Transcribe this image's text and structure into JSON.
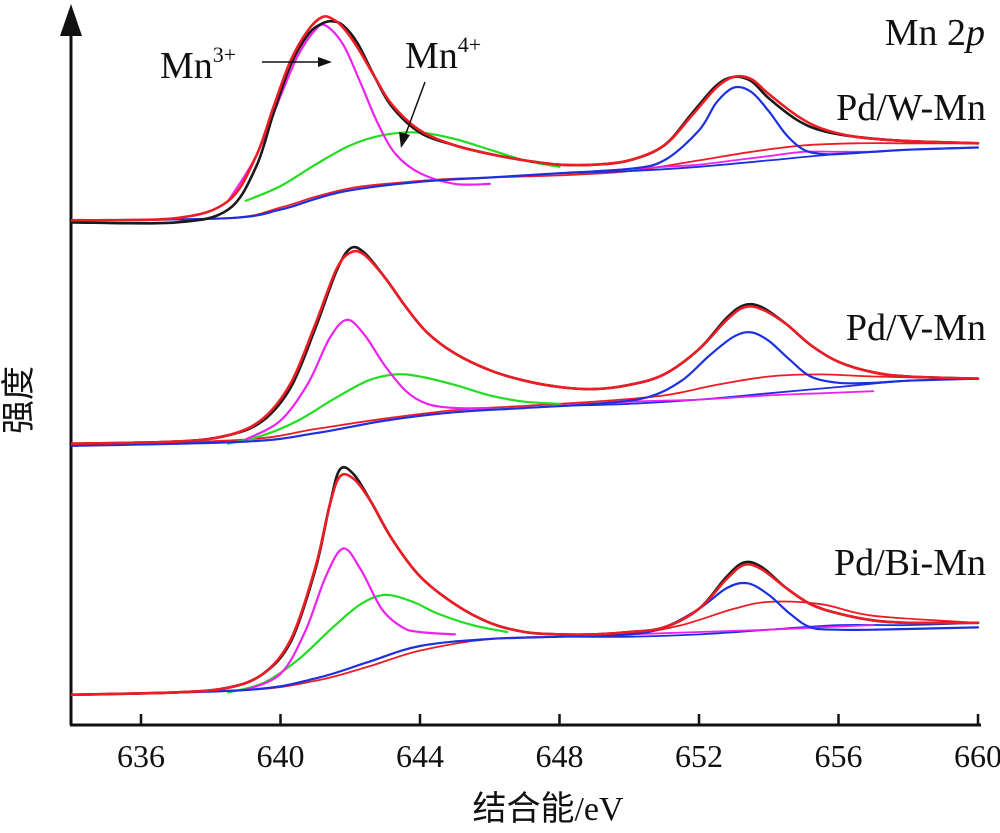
{
  "chart_data": {
    "type": "line",
    "title": "Mn 2p",
    "xlabel": "结合能/eV",
    "ylabel": "强度",
    "xlim": [
      633.8,
      660.2
    ],
    "xticks": [
      636,
      640,
      644,
      648,
      652,
      656,
      660
    ],
    "xtick_labels": [
      "636",
      "640",
      "644",
      "648",
      "652",
      "656",
      "660"
    ],
    "yticks": [],
    "grid": false,
    "annotations": {
      "mn3": {
        "base": "Mn",
        "sup": "3+"
      },
      "mn4": {
        "base": "Mn",
        "sup": "4+"
      }
    },
    "colors": {
      "raw": "#1a1a1a",
      "envelope": "#ee1c25",
      "background": "#ee1c25",
      "mn3": "#ee22ee",
      "mn4": "#22dd22",
      "p12": "#1c30e0",
      "p12_sat": "#ee22ee",
      "p12_bg": "#1c30e0",
      "axis": "#111111"
    },
    "panels": [
      {
        "name": "Pd/W-Mn",
        "yrange": [
          0,
          100
        ],
        "series": [
          {
            "role": "raw",
            "x": [
              634.0,
              637.0,
              638.5,
              639.3,
              639.8,
              640.3,
              640.8,
              641.2,
              641.5,
              641.8,
              642.2,
              642.7,
              643.2,
              644.0,
              645.0,
              646.0,
              647.0,
              648.0,
              649.0,
              650.0,
              651.0,
              651.8,
              652.5,
              653.0,
              653.5,
              654.0,
              654.8,
              655.5,
              656.5,
              658.0,
              660.0
            ],
            "y": [
              4,
              4,
              10,
              30,
              55,
              78,
              92,
              97,
              98,
              96,
              88,
              72,
              58,
              46,
              40,
              36,
              33,
              31,
              31,
              33,
              40,
              55,
              68,
              72,
              70,
              62,
              52,
              47,
              44,
              42,
              41
            ]
          },
          {
            "role": "envelope",
            "x": [
              634.0,
              637.0,
              638.5,
              639.3,
              639.8,
              640.3,
              640.8,
              641.2,
              641.5,
              641.8,
              642.2,
              642.7,
              643.2,
              644.0,
              645.0,
              646.0,
              647.0,
              648.0,
              649.0,
              650.0,
              651.0,
              651.8,
              652.5,
              653.0,
              653.5,
              654.0,
              654.8,
              655.5,
              656.5,
              658.0,
              660.0
            ],
            "y": [
              5,
              6,
              14,
              35,
              58,
              80,
              94,
              100,
              99,
              95,
              86,
              72,
              59,
              47,
              40,
              36,
              33,
              31,
              31,
              33,
              40,
              54,
              67,
              72,
              71,
              64,
              54,
              48,
              44,
              42,
              41
            ]
          },
          {
            "role": "mn3",
            "x": [
              638.5,
              639.3,
              640.0,
              640.5,
              641.0,
              641.3,
              641.8,
              642.3,
              642.8,
              643.3,
              644.0,
              645.0,
              646.0
            ],
            "y": [
              14,
              35,
              63,
              82,
              94,
              96,
              87,
              69,
              50,
              36,
              27,
              22,
              22
            ]
          },
          {
            "role": "mn4",
            "x": [
              639.0,
              640.0,
              641.0,
              642.0,
              643.0,
              644.0,
              645.0,
              646.0,
              647.0,
              648.0
            ],
            "y": [
              14,
              21,
              31,
              40,
              45,
              46,
              43,
              38,
              33,
              30
            ]
          },
          {
            "role": "background",
            "x": [
              634.0,
              638.5,
              640.0,
              641.0,
              642.0,
              643.0,
              644.5,
              646.0,
              648.0,
              650.0,
              652.0,
              653.5,
              655.0,
              656.5,
              658.0,
              660.0
            ],
            "y": [
              5,
              6,
              11,
              16,
              20,
              22,
              24,
              25,
              26,
              28,
              33,
              37,
              40,
              41,
              41,
              41
            ]
          },
          {
            "role": "p12",
            "x": [
              634.0,
              638.5,
              640.0,
              641.0,
              642.0,
              644.0,
              646.0,
              648.0,
              650.0,
              651.0,
              652.0,
              652.5,
              653.0,
              653.5,
              654.0,
              654.5,
              655.0,
              655.5,
              656.0,
              657.0,
              658.0,
              660.0
            ],
            "y": [
              5,
              6,
              10,
              15,
              19,
              23,
              25,
              27,
              29,
              33,
              47,
              60,
              67,
              65,
              56,
              45,
              38,
              36,
              36,
              37,
              38,
              39
            ]
          },
          {
            "role": "p12_sat",
            "x": [
              649.0,
              650.0,
              651.0,
              652.0,
              653.0,
              654.0,
              655.0,
              656.0,
              657.0
            ],
            "y": [
              28,
              29,
              30,
              31,
              33,
              35,
              37,
              37,
              37
            ]
          },
          {
            "role": "p12_bg",
            "x": [
              648.0,
              650.0,
              652.0,
              654.0,
              656.0,
              658.0,
              660.0
            ],
            "y": [
              27,
              28,
              30,
              33,
              36,
              38,
              39
            ]
          }
        ]
      },
      {
        "name": "Pd/V-Mn",
        "yrange": [
          0,
          100
        ],
        "series": [
          {
            "role": "raw",
            "x": [
              634.0,
              637.0,
              638.5,
              639.5,
              640.3,
              641.0,
              641.6,
              642.0,
              642.4,
              643.0,
              643.6,
              644.2,
              645.0,
              646.0,
              647.0,
              648.0,
              649.0,
              650.0,
              651.0,
              652.0,
              652.8,
              653.3,
              653.8,
              654.5,
              655.2,
              656.0,
              657.0,
              658.0,
              660.0
            ],
            "y": [
              3,
              4,
              7,
              14,
              30,
              58,
              85,
              96,
              94,
              82,
              68,
              56,
              46,
              38,
              33,
              30,
              29,
              31,
              36,
              48,
              63,
              69,
              68,
              60,
              50,
              42,
              37,
              35,
              34
            ]
          },
          {
            "role": "envelope",
            "x": [
              634.0,
              637.0,
              638.5,
              639.5,
              640.3,
              641.0,
              641.6,
              642.0,
              642.4,
              643.0,
              643.6,
              644.2,
              645.0,
              646.0,
              647.0,
              648.0,
              649.0,
              650.0,
              651.0,
              652.0,
              652.8,
              653.3,
              653.8,
              654.5,
              655.2,
              656.0,
              657.0,
              658.0,
              660.0
            ],
            "y": [
              3,
              4,
              7,
              15,
              32,
              60,
              86,
              94,
              93,
              82,
              68,
              56,
              46,
              38,
              33,
              30,
              29,
              31,
              36,
              48,
              62,
              68,
              67,
              60,
              50,
              42,
              37,
              35,
              34
            ]
          },
          {
            "role": "mn3",
            "x": [
              639.0,
              640.0,
              640.8,
              641.4,
              641.9,
              642.4,
              643.0,
              643.6,
              644.2,
              645.0,
              646.0
            ],
            "y": [
              5,
              14,
              32,
              53,
              62,
              55,
              40,
              28,
              22,
              20,
              20
            ]
          },
          {
            "role": "mn4",
            "x": [
              638.5,
              639.5,
              640.5,
              641.5,
              642.5,
              643.3,
              644.0,
              645.0,
              646.0,
              647.0,
              648.0
            ],
            "y": [
              3,
              7,
              14,
              24,
              33,
              36,
              35,
              31,
              26,
              23,
              22
            ]
          },
          {
            "role": "background",
            "x": [
              634.0,
              639.0,
              641.0,
              643.0,
              645.0,
              647.0,
              649.0,
              651.0,
              652.5,
              654.0,
              655.5,
              657.0,
              660.0
            ],
            "y": [
              2,
              5,
              10,
              15,
              19,
              21,
              23,
              26,
              31,
              35,
              36,
              35,
              34
            ]
          },
          {
            "role": "p12",
            "x": [
              634.0,
              639.0,
              641.0,
              643.0,
              645.0,
              647.0,
              649.0,
              650.5,
              651.5,
              652.3,
              653.0,
              653.5,
              654.0,
              654.6,
              655.2,
              656.0,
              657.0,
              658.0,
              660.0
            ],
            "y": [
              2,
              4,
              8,
              14,
              18,
              20,
              22,
              25,
              33,
              45,
              54,
              56,
              52,
              43,
              35,
              32,
              32,
              33,
              34
            ]
          },
          {
            "role": "p12_sat",
            "x": [
              648.0,
              650.0,
              652.0,
              654.0,
              655.5,
              657.0
            ],
            "y": [
              21,
              23,
              24,
              26,
              27,
              28
            ]
          },
          {
            "role": "p12_bg",
            "x": [
              648.0,
              650.0,
              652.0,
              654.0,
              656.0,
              658.0,
              660.0
            ],
            "y": [
              21,
              22,
              24,
              27,
              30,
              33,
              34
            ]
          }
        ]
      },
      {
        "name": "Pd/Bi-Mn",
        "yrange": [
          0,
          100
        ],
        "series": [
          {
            "role": "raw",
            "x": [
              634.0,
              637.0,
              638.5,
              639.5,
              640.3,
              641.0,
              641.4,
              641.7,
              642.1,
              642.6,
              643.2,
              644.0,
              645.0,
              646.0,
              647.0,
              648.0,
              649.0,
              650.0,
              651.0,
              652.0,
              652.8,
              653.3,
              653.8,
              654.5,
              655.2,
              656.0,
              657.0,
              658.0,
              660.0
            ],
            "y": [
              1,
              2,
              4,
              10,
              24,
              55,
              82,
              98,
              96,
              84,
              68,
              52,
              40,
              32,
              28,
              27,
              27,
              28,
              30,
              38,
              52,
              58,
              56,
              47,
              40,
              36,
              33,
              32,
              32
            ]
          },
          {
            "role": "envelope",
            "x": [
              634.0,
              637.0,
              638.5,
              639.5,
              640.3,
              641.0,
              641.4,
              641.7,
              642.1,
              642.6,
              643.2,
              644.0,
              645.0,
              646.0,
              647.0,
              648.0,
              649.0,
              650.0,
              651.0,
              652.0,
              652.8,
              653.3,
              653.8,
              654.5,
              655.2,
              656.0,
              657.0,
              658.0,
              660.0
            ],
            "y": [
              1,
              2,
              4,
              10,
              25,
              56,
              82,
              95,
              94,
              84,
              68,
              52,
              40,
              32,
              28,
              27,
              27,
              28,
              30,
              38,
              51,
              57,
              55,
              47,
              40,
              36,
              33,
              32,
              32
            ]
          },
          {
            "role": "mn3",
            "x": [
              639.0,
              640.0,
              640.7,
              641.3,
              641.8,
              642.3,
              642.9,
              643.5,
              644.0,
              645.0
            ],
            "y": [
              3,
              10,
              28,
              52,
              64,
              55,
              38,
              30,
              28,
              27
            ]
          },
          {
            "role": "mn4",
            "x": [
              638.5,
              639.5,
              640.5,
              641.5,
              642.3,
              643.0,
              643.8,
              644.5,
              645.5,
              646.5
            ],
            "y": [
              2,
              6,
              16,
              30,
              40,
              44,
              41,
              36,
              31,
              28
            ]
          },
          {
            "role": "background",
            "x": [
              634.0,
              639.0,
              641.0,
              642.5,
              644.0,
              646.0,
              648.0,
              650.0,
              651.5,
              653.0,
              654.0,
              655.5,
              657.0,
              660.0
            ],
            "y": [
              1,
              3,
              7,
              13,
              20,
              25,
              26,
              27,
              31,
              38,
              41,
              40,
              35,
              32
            ]
          },
          {
            "role": "p12",
            "x": [
              634.0,
              639.0,
              641.0,
              642.5,
              644.0,
              646.0,
              648.0,
              650.0,
              651.0,
              652.0,
              652.8,
              653.4,
              654.0,
              654.6,
              655.2,
              656.0,
              657.0,
              660.0
            ],
            "y": [
              1,
              3,
              8,
              15,
              22,
              25,
              26,
              27,
              30,
              38,
              47,
              49,
              44,
              36,
              30,
              29,
              29,
              30
            ]
          },
          {
            "role": "p12_sat",
            "x": [
              648.0,
              650.0,
              652.0,
              654.0,
              655.5,
              657.0
            ],
            "y": [
              26,
              27,
              28,
              29,
              30,
              31
            ]
          },
          {
            "role": "p12_bg",
            "x": [
              648.0,
              650.0,
              652.0,
              654.0,
              656.0,
              658.0,
              660.0
            ],
            "y": [
              26,
              26,
              27,
              29,
              31,
              31,
              32
            ]
          }
        ]
      }
    ]
  }
}
